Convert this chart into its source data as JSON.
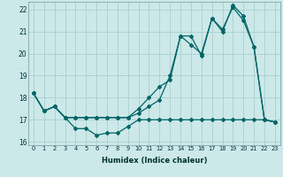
{
  "xlabel": "Humidex (Indice chaleur)",
  "background_color": "#cce8e8",
  "grid_color": "#aacfcf",
  "line_color": "#006666",
  "xlim": [
    -0.5,
    23.5
  ],
  "ylim": [
    15.85,
    22.35
  ],
  "yticks": [
    16,
    17,
    18,
    19,
    20,
    21,
    22
  ],
  "xticks": [
    0,
    1,
    2,
    3,
    4,
    5,
    6,
    7,
    8,
    9,
    10,
    11,
    12,
    13,
    14,
    15,
    16,
    17,
    18,
    19,
    20,
    21,
    22,
    23
  ],
  "line1_x": [
    0,
    1,
    2,
    3,
    4,
    5,
    6,
    7,
    8,
    9,
    10,
    11,
    12,
    13,
    14,
    15,
    16,
    17,
    18,
    19,
    20,
    21,
    22,
    23
  ],
  "line1_y": [
    18.2,
    17.4,
    17.6,
    17.1,
    16.6,
    16.6,
    16.3,
    16.4,
    16.4,
    16.7,
    17.0,
    17.0,
    17.0,
    17.0,
    17.0,
    17.0,
    17.0,
    17.0,
    17.0,
    17.0,
    17.0,
    17.0,
    17.0,
    16.9
  ],
  "line2_x": [
    0,
    1,
    2,
    3,
    4,
    5,
    6,
    7,
    8,
    9,
    10,
    11,
    12,
    13,
    14,
    15,
    16,
    17,
    18,
    19,
    20,
    21,
    22,
    23
  ],
  "line2_y": [
    18.2,
    17.4,
    17.6,
    17.1,
    17.1,
    17.1,
    17.1,
    17.1,
    17.1,
    17.1,
    17.5,
    18.0,
    18.5,
    18.8,
    20.8,
    20.4,
    20.0,
    21.6,
    21.1,
    22.1,
    21.5,
    20.3,
    17.0,
    16.9
  ],
  "line3_x": [
    0,
    1,
    2,
    3,
    4,
    5,
    6,
    7,
    8,
    9,
    10,
    11,
    12,
    13,
    14,
    15,
    16,
    17,
    18,
    19,
    20,
    21,
    22,
    23
  ],
  "line3_y": [
    18.2,
    17.4,
    17.6,
    17.1,
    17.1,
    17.1,
    17.1,
    17.1,
    17.1,
    17.1,
    17.3,
    17.6,
    17.9,
    19.0,
    20.8,
    20.8,
    19.9,
    21.6,
    21.0,
    22.2,
    21.7,
    20.3,
    17.0,
    16.9
  ]
}
